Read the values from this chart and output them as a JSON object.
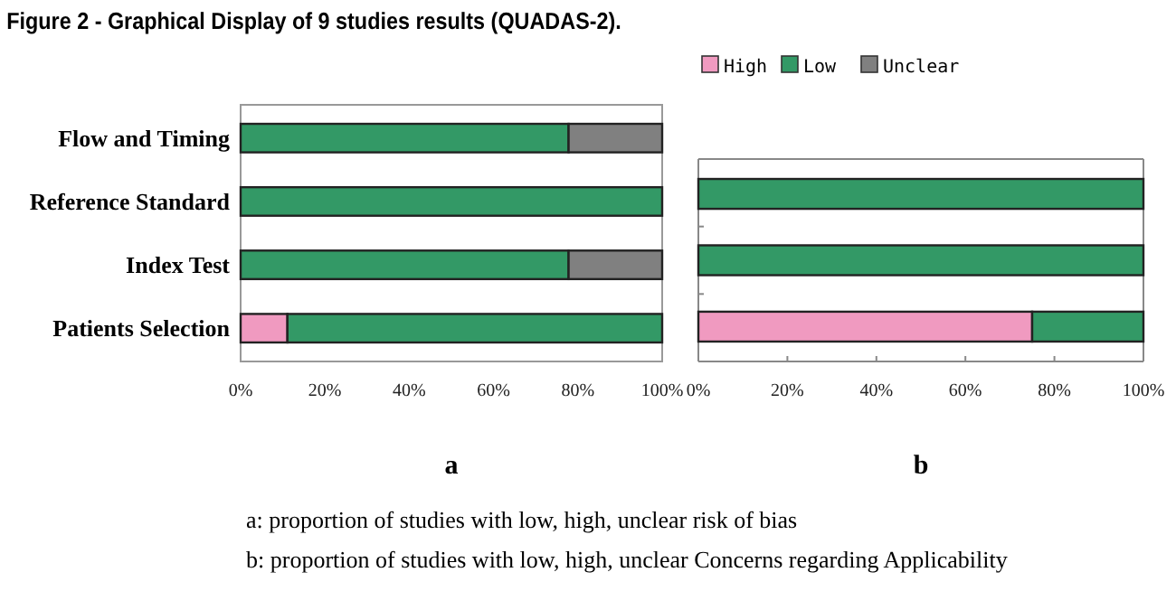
{
  "chart_data": [
    {
      "type": "bar",
      "orientation": "horizontal",
      "stacked": true,
      "title": "Figure 2 - Graphical Display of 9 studies results (QUADAS-2).",
      "categories": [
        "Flow and Timing",
        "Reference Standard",
        "Index Test",
        "Patients Selection"
      ],
      "series": [
        {
          "color": "#f09ac0",
          "values": [
            0,
            0,
            0,
            11.1
          ]
        },
        {
          "color": "#339966",
          "values": [
            77.8,
            100,
            77.8,
            88.9
          ]
        },
        {
          "color": "#808080",
          "values": [
            22.2,
            0,
            22.2,
            0
          ]
        }
      ],
      "xlim": [
        0,
        100
      ],
      "xticks": [
        {
          "value": 0,
          "label": "0%"
        },
        {
          "value": 20,
          "label": "20%"
        },
        {
          "value": 40,
          "label": "40%"
        },
        {
          "value": 60,
          "label": "60%"
        },
        {
          "value": 80,
          "label": "80%"
        },
        {
          "value": 100,
          "label": "100%"
        }
      ],
      "annotations": [
        "a",
        "a: proportion of studies with low, high, unclear risk of bias",
        "b: proportion of studies with low, high, unclear Concerns regarding Applicability"
      ]
    },
    {
      "type": "bar",
      "orientation": "horizontal",
      "stacked": true,
      "categories": [
        null,
        null,
        null
      ],
      "series": [
        {
          "name": "High",
          "color": "#f09ac0",
          "values": [
            0,
            0,
            75
          ]
        },
        {
          "name": "Low",
          "color": "#339966",
          "values": [
            100,
            100,
            25
          ]
        },
        {
          "name": "Unclear",
          "color": "#808080",
          "values": [
            0,
            0,
            0
          ]
        }
      ],
      "xlim": [
        0,
        100
      ],
      "xticks": [
        {
          "value": 0,
          "label": "0%"
        },
        {
          "value": 20,
          "label": "20%"
        },
        {
          "value": 40,
          "label": "40%"
        },
        {
          "value": 60,
          "label": "60%"
        },
        {
          "value": 80,
          "label": "80%"
        },
        {
          "value": 100,
          "label": "100%"
        }
      ],
      "legend": "top",
      "annotations": [
        "b"
      ]
    }
  ]
}
